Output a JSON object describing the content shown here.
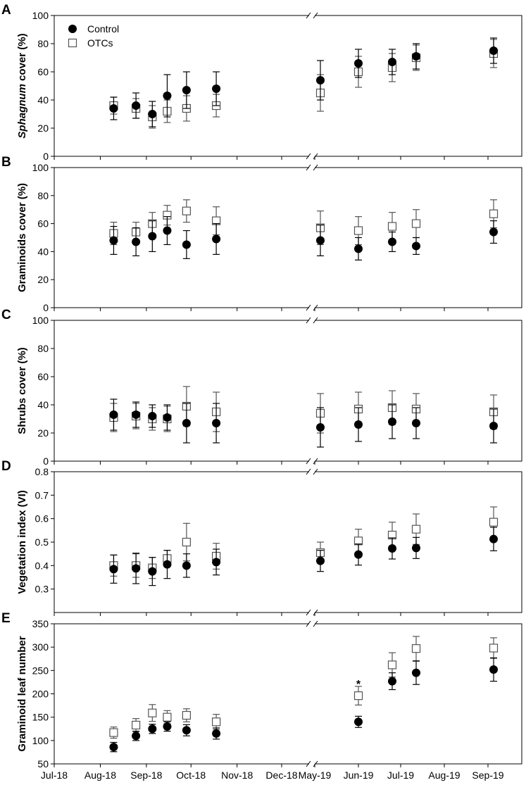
{
  "legend": [
    {
      "name": "Control",
      "marker": "filled-circle",
      "color": "#000000"
    },
    {
      "name": "OTCs",
      "marker": "open-square",
      "color": "#555555"
    }
  ],
  "x_axis": {
    "type": "date",
    "broken": true,
    "break_between": [
      "Dec-18",
      "May-19"
    ],
    "tick_labels": [
      "Jul-18",
      "Aug-18",
      "Sep-18",
      "Oct-18",
      "Nov-18",
      "Dec-18",
      "May-19",
      "Jun-19",
      "Jul-19",
      "Aug-19",
      "Sep-19"
    ]
  },
  "chart_data": [
    {
      "type": "scatter",
      "panel": "A",
      "ylabel_italic": "Sphagnum",
      "ylabel_rest": " cover (%)",
      "ylim": [
        0,
        100
      ],
      "yticks": [
        0,
        20,
        40,
        60,
        80,
        100
      ],
      "x": [
        "2018-08-10",
        "2018-08-25",
        "2018-09-05",
        "2018-09-15",
        "2018-09-28",
        "2018-10-18",
        "2019-05-05",
        "2019-06-01",
        "2019-06-25",
        "2019-07-12",
        "2019-09-05"
      ],
      "series": [
        {
          "name": "Control",
          "values": [
            34,
            36,
            30,
            43,
            47,
            48,
            54,
            66,
            67,
            71,
            75
          ],
          "err": [
            8,
            9,
            9,
            15,
            13,
            12,
            14,
            10,
            9,
            9,
            9
          ]
        },
        {
          "name": "OTCs",
          "values": [
            36,
            34,
            28,
            32,
            34,
            36,
            45,
            60,
            63,
            70,
            73
          ],
          "err": [
            6,
            7,
            8,
            8,
            9,
            8,
            13,
            11,
            10,
            9,
            10
          ]
        }
      ]
    },
    {
      "type": "scatter",
      "panel": "B",
      "ylabel": "Graminoids cover (%)",
      "ylim": [
        0,
        100
      ],
      "yticks": [
        0,
        20,
        40,
        60,
        80,
        100
      ],
      "x": [
        "2018-08-10",
        "2018-08-25",
        "2018-09-05",
        "2018-09-15",
        "2018-09-28",
        "2018-10-18",
        "2019-05-05",
        "2019-06-01",
        "2019-06-25",
        "2019-07-12",
        "2019-09-05"
      ],
      "series": [
        {
          "name": "Control",
          "values": [
            48,
            47,
            51,
            55,
            45,
            49,
            48,
            42,
            47,
            44,
            54
          ],
          "err": [
            10,
            10,
            11,
            10,
            10,
            11,
            11,
            8,
            7,
            6,
            8
          ]
        },
        {
          "name": "OTCs",
          "values": [
            53,
            54,
            60,
            66,
            69,
            62,
            57,
            55,
            58,
            60,
            67
          ],
          "err": [
            8,
            7,
            8,
            7,
            8,
            10,
            12,
            10,
            10,
            10,
            10
          ]
        }
      ]
    },
    {
      "type": "scatter",
      "panel": "C",
      "ylabel": "Shrubs cover (%)",
      "ylim": [
        0,
        100
      ],
      "yticks": [
        0,
        20,
        40,
        60,
        80,
        100
      ],
      "x": [
        "2018-08-10",
        "2018-08-25",
        "2018-09-05",
        "2018-09-15",
        "2018-09-28",
        "2018-10-18",
        "2019-05-05",
        "2019-06-01",
        "2019-06-25",
        "2019-07-12",
        "2019-09-05"
      ],
      "series": [
        {
          "name": "Control",
          "values": [
            33,
            33,
            32,
            31,
            27,
            27,
            24,
            26,
            28,
            27,
            25
          ],
          "err": [
            11,
            9,
            8,
            9,
            14,
            14,
            14,
            12,
            12,
            11,
            12
          ]
        },
        {
          "name": "OTCs",
          "values": [
            31,
            32,
            30,
            30,
            39,
            35,
            34,
            37,
            38,
            37,
            35
          ],
          "err": [
            10,
            9,
            8,
            9,
            14,
            14,
            14,
            12,
            12,
            11,
            12
          ]
        }
      ]
    },
    {
      "type": "scatter",
      "panel": "D",
      "ylabel": "Vegetation index (VI)",
      "ylim": [
        0.2,
        0.8
      ],
      "yticks": [
        0.3,
        0.4,
        0.5,
        0.6,
        0.7,
        0.8
      ],
      "x": [
        "2018-08-10",
        "2018-08-25",
        "2018-09-05",
        "2018-09-15",
        "2018-09-28",
        "2018-10-18",
        "2019-05-05",
        "2019-06-01",
        "2019-06-25",
        "2019-07-12",
        "2019-09-05"
      ],
      "series": [
        {
          "name": "Control",
          "values": [
            0.385,
            0.388,
            0.375,
            0.405,
            0.4,
            0.415,
            0.42,
            0.447,
            0.473,
            0.475,
            0.513
          ],
          "err": [
            0.06,
            0.065,
            0.06,
            0.06,
            0.05,
            0.055,
            0.045,
            0.045,
            0.045,
            0.045,
            0.05
          ]
        },
        {
          "name": "OTCs",
          "values": [
            0.4,
            0.4,
            0.39,
            0.43,
            0.5,
            0.44,
            0.455,
            0.505,
            0.53,
            0.555,
            0.585
          ],
          "err": [
            0.045,
            0.05,
            0.045,
            0.035,
            0.08,
            0.055,
            0.045,
            0.05,
            0.055,
            0.065,
            0.065
          ]
        }
      ]
    },
    {
      "type": "scatter",
      "panel": "E",
      "ylabel": "Graminoid leaf number",
      "ylim": [
        50,
        350
      ],
      "yticks": [
        50,
        100,
        150,
        200,
        250,
        300,
        350
      ],
      "x": [
        "2018-08-10",
        "2018-08-25",
        "2018-09-05",
        "2018-09-15",
        "2018-09-28",
        "2018-10-18",
        "2019-06-01",
        "2019-06-25",
        "2019-07-12",
        "2019-09-05"
      ],
      "series": [
        {
          "name": "Control",
          "values": [
            86,
            110,
            125,
            130,
            122,
            115,
            140,
            227,
            245,
            252
          ],
          "err": [
            10,
            10,
            10,
            10,
            12,
            12,
            12,
            18,
            25,
            25
          ]
        },
        {
          "name": "OTCs",
          "values": [
            117,
            133,
            159,
            150,
            154,
            140,
            196,
            262,
            297,
            298
          ],
          "err": [
            12,
            14,
            18,
            14,
            14,
            16,
            20,
            26,
            26,
            22
          ]
        }
      ],
      "annotations": [
        {
          "text": "*",
          "x": "2019-06-01",
          "y": 222
        }
      ]
    }
  ]
}
